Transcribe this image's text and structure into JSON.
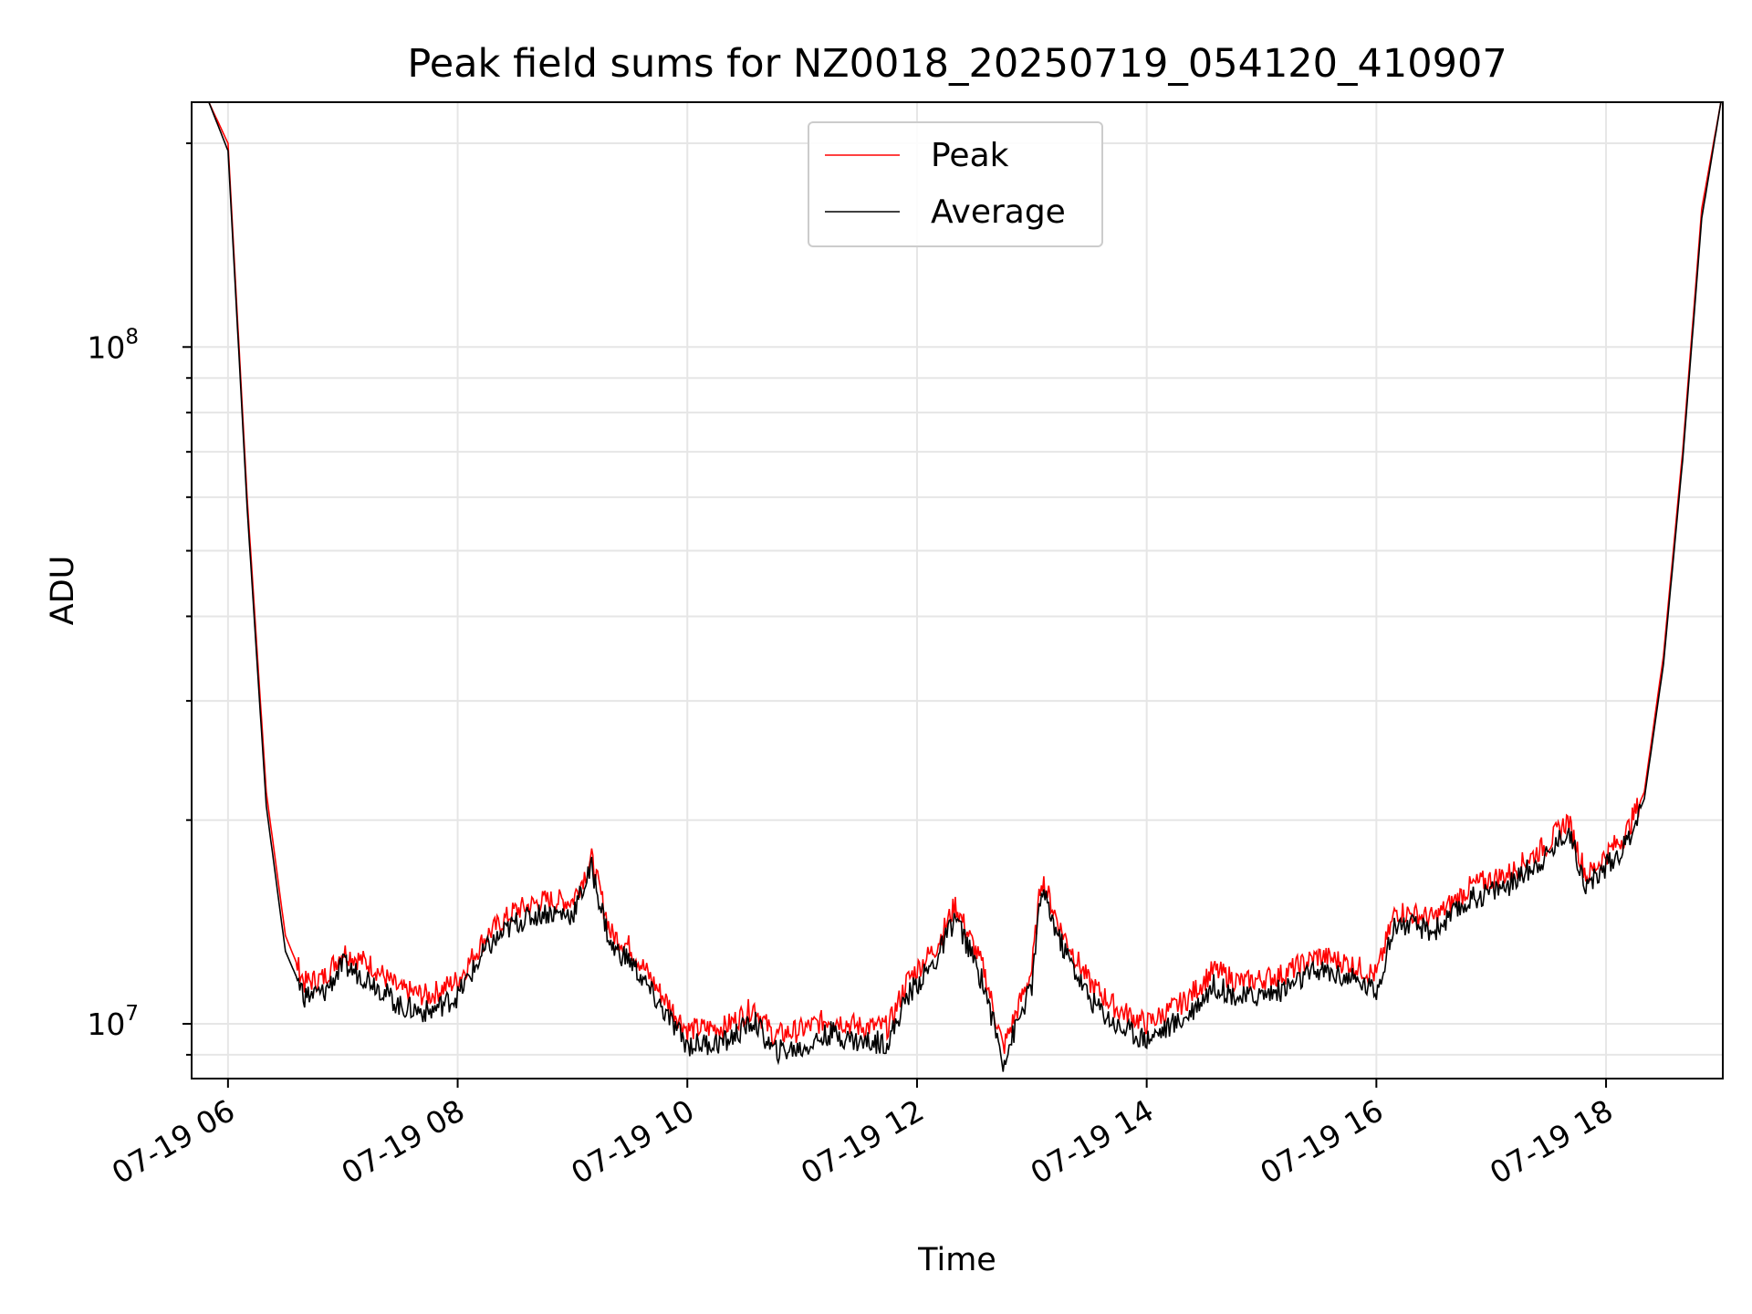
{
  "chart_data": {
    "type": "line",
    "title": "Peak field sums for NZ0018_20250719_054120_410907",
    "xlabel": "Time",
    "ylabel": "ADU",
    "yscale": "log",
    "xlim": [
      "07-19 05:41",
      "07-19 19:01"
    ],
    "ylim": [
      8300000,
      230000000
    ],
    "grid": true,
    "legend_position": "top-center",
    "x_ticks": [
      "07-19 06",
      "07-19 08",
      "07-19 10",
      "07-19 12",
      "07-19 14",
      "07-19 16",
      "07-19 18"
    ],
    "y_ticks": [
      {
        "value": 10000000,
        "base": "10",
        "exp": "7"
      },
      {
        "value": 100000000,
        "base": "10",
        "exp": "8"
      }
    ],
    "x": [
      "07-19 05:41",
      "07-19 05:50",
      "07-19 06:00",
      "07-19 06:10",
      "07-19 06:20",
      "07-19 06:30",
      "07-19 06:40",
      "07-19 06:50",
      "07-19 07:00",
      "07-19 07:15",
      "07-19 07:30",
      "07-19 07:45",
      "07-19 08:00",
      "07-19 08:15",
      "07-19 08:30",
      "07-19 08:45",
      "07-19 09:00",
      "07-19 09:10",
      "07-19 09:20",
      "07-19 09:30",
      "07-19 09:45",
      "07-19 10:00",
      "07-19 10:20",
      "07-19 10:35",
      "07-19 10:45",
      "07-19 11:00",
      "07-19 11:15",
      "07-19 11:30",
      "07-19 11:45",
      "07-19 11:55",
      "07-19 12:10",
      "07-19 12:20",
      "07-19 12:35",
      "07-19 12:45",
      "07-19 13:00",
      "07-19 13:05",
      "07-19 13:15",
      "07-19 13:30",
      "07-19 13:45",
      "07-19 14:00",
      "07-19 14:20",
      "07-19 14:35",
      "07-19 14:50",
      "07-19 15:10",
      "07-19 15:30",
      "07-19 15:45",
      "07-19 16:00",
      "07-19 16:10",
      "07-19 16:30",
      "07-19 16:50",
      "07-19 17:10",
      "07-19 17:30",
      "07-19 17:40",
      "07-19 17:50",
      "07-19 18:00",
      "07-19 18:10",
      "07-19 18:20",
      "07-19 18:30",
      "07-19 18:40",
      "07-19 18:50",
      "07-19 19:00"
    ],
    "series": [
      {
        "name": "Peak",
        "color": "#ff0000",
        "values": [
          230000000,
          230000000,
          200000000,
          60000000,
          22000000,
          13500000,
          11500000,
          11700000,
          12800000,
          12200000,
          11200000,
          11000000,
          11600000,
          13500000,
          14700000,
          15200000,
          15200000,
          17500000,
          13600000,
          13000000,
          11200000,
          9800000,
          9900000,
          10600000,
          9600000,
          9800000,
          10200000,
          9900000,
          9900000,
          11600000,
          13000000,
          15000000,
          12000000,
          9200000,
          12000000,
          16500000,
          13800000,
          11500000,
          10500000,
          10000000,
          10800000,
          12000000,
          11500000,
          11800000,
          12600000,
          12300000,
          11800000,
          14700000,
          14300000,
          16000000,
          16700000,
          18500000,
          20000000,
          16500000,
          17800000,
          19000000,
          22000000,
          35000000,
          70000000,
          160000000,
          230000000
        ]
      },
      {
        "name": "Average",
        "color": "#000000",
        "values": [
          230000000,
          230000000,
          195000000,
          58000000,
          21000000,
          12800000,
          11000000,
          11100000,
          12200000,
          11600000,
          10600000,
          10400000,
          11000000,
          12900000,
          14100000,
          14600000,
          14500000,
          17000000,
          13000000,
          12400000,
          10700000,
          9300000,
          9400000,
          10100000,
          9100000,
          9200000,
          9700000,
          9400000,
          9400000,
          11000000,
          12400000,
          14400000,
          11400000,
          8800000,
          11400000,
          15800000,
          13200000,
          10900000,
          9900000,
          9500000,
          10200000,
          11400000,
          10900000,
          11200000,
          12000000,
          11700000,
          11200000,
          14100000,
          13700000,
          15300000,
          16100000,
          17800000,
          19400000,
          15900000,
          17100000,
          18300000,
          21500000,
          34000000,
          68000000,
          155000000,
          230000000
        ]
      }
    ]
  }
}
